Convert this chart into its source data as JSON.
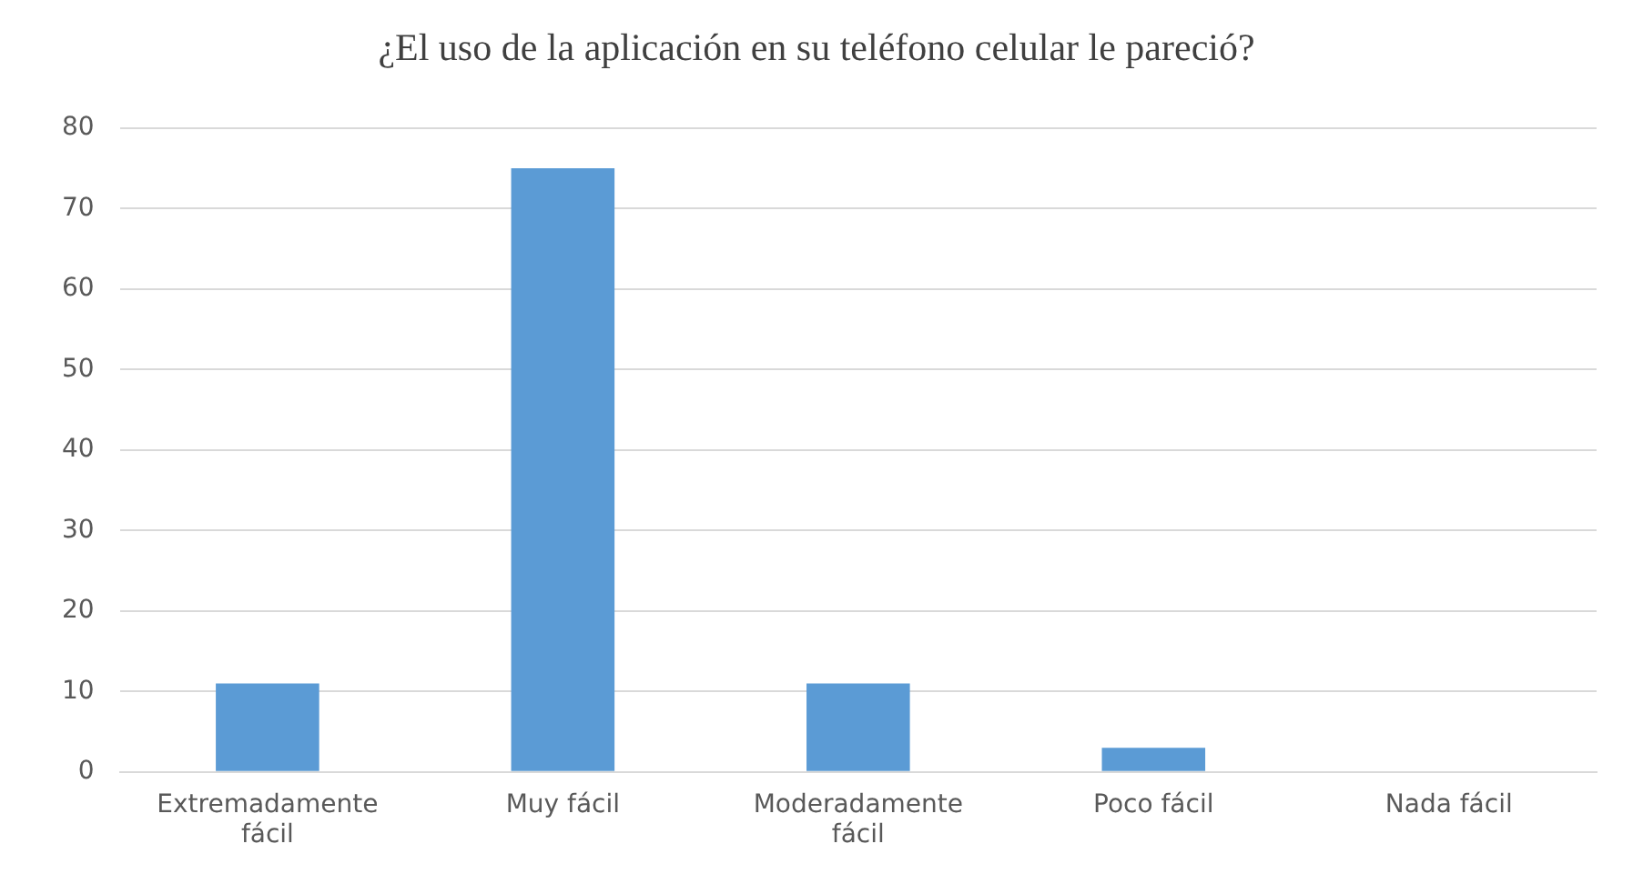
{
  "chart_data": {
    "type": "bar",
    "title": "¿El uso de la aplicación en su teléfono celular le pareció?",
    "categories": [
      "Extremadamente fácil",
      "Muy fácil",
      "Moderadamente fácil",
      "Poco fácil",
      "Nada fácil"
    ],
    "values": [
      11,
      75,
      11,
      3,
      0
    ],
    "color": "#5b9bd5",
    "ylim": [
      0,
      80
    ],
    "yticks": [
      0,
      10,
      20,
      30,
      40,
      50,
      60,
      70,
      80
    ],
    "grid": "y"
  }
}
